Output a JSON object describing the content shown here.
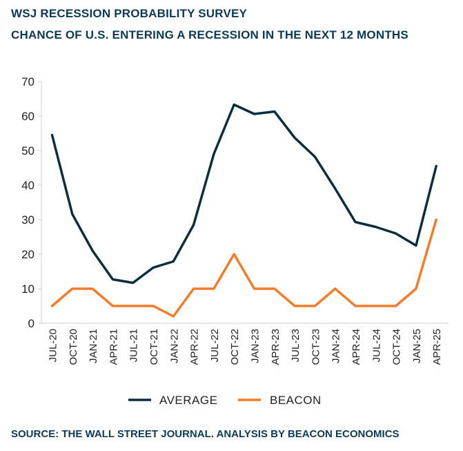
{
  "chart_data": {
    "type": "line",
    "title": "WSJ RECESSION PROBABILITY SURVEY",
    "subtitle": "CHANCE OF U.S. ENTERING A RECESSION IN THE NEXT 12 MONTHS",
    "xlabel": "",
    "ylabel": "",
    "ylim": [
      0,
      70
    ],
    "yticks": [
      0,
      10,
      20,
      30,
      40,
      50,
      60,
      70
    ],
    "categories": [
      "JUL-20",
      "OCT-20",
      "JAN-21",
      "APR-21",
      "JUL-21",
      "OCT-21",
      "JAN-22",
      "APR-22",
      "JUL-22",
      "OCT-22",
      "JAN-23",
      "APR-23",
      "JUL-23",
      "OCT-23",
      "JAN-24",
      "APR-24",
      "JUL-24",
      "OCT-24",
      "JAN-25",
      "APR-25"
    ],
    "series": [
      {
        "name": "AVERAGE",
        "color": "#0b2e3f",
        "values": [
          54.5,
          31.6,
          21.0,
          12.7,
          11.7,
          16.1,
          17.9,
          28.5,
          49.0,
          63.3,
          60.6,
          61.3,
          53.7,
          48.2,
          39.0,
          29.3,
          27.9,
          26.0,
          22.5,
          45.5
        ]
      },
      {
        "name": "BEACON",
        "color": "#f47b2a",
        "values": [
          5,
          10,
          10,
          5,
          5,
          5,
          2,
          10,
          10,
          20,
          10,
          10,
          5,
          5,
          10,
          5,
          5,
          5,
          10,
          30
        ]
      }
    ],
    "grid": false,
    "legend": "bottom-center"
  },
  "source": "SOURCE: THE WALL STREET JOURNAL. ANALYSIS BY BEACON ECONOMICS"
}
